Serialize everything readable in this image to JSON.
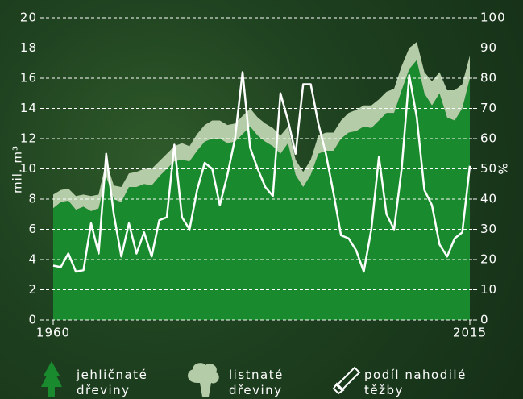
{
  "chart_data": {
    "type": "area",
    "y_label": "mil. m³",
    "y2_label": "%",
    "x": [
      1960,
      1961,
      1962,
      1963,
      1964,
      1965,
      1966,
      1967,
      1968,
      1969,
      1970,
      1971,
      1972,
      1973,
      1974,
      1975,
      1976,
      1977,
      1978,
      1979,
      1980,
      1981,
      1982,
      1983,
      1984,
      1985,
      1986,
      1987,
      1988,
      1989,
      1990,
      1991,
      1992,
      1993,
      1994,
      1995,
      1996,
      1997,
      1998,
      1999,
      2000,
      2001,
      2002,
      2003,
      2004,
      2005,
      2006,
      2007,
      2008,
      2009,
      2010,
      2011,
      2012,
      2013,
      2014,
      2015
    ],
    "xlim": [
      1960,
      2015
    ],
    "xticks": [
      1960,
      2015
    ],
    "ylim": [
      0,
      20
    ],
    "yticks": [
      0,
      2,
      4,
      6,
      8,
      10,
      12,
      14,
      16,
      18,
      20
    ],
    "y2lim": [
      0,
      100
    ],
    "y2ticks": [
      0,
      10,
      20,
      30,
      40,
      50,
      60,
      70,
      80,
      90,
      100
    ],
    "grid": true,
    "series": [
      {
        "name": "jehličnaté dřeviny",
        "color": "#1a8a2e",
        "stack": true,
        "values": [
          7.4,
          7.8,
          7.9,
          7.3,
          7.5,
          7.2,
          7.4,
          9.5,
          8.0,
          7.8,
          8.8,
          8.8,
          9.0,
          8.9,
          9.5,
          10.0,
          10.5,
          10.6,
          10.5,
          11.2,
          11.8,
          12.0,
          12.0,
          11.7,
          11.8,
          12.3,
          12.8,
          12.2,
          11.8,
          11.5,
          11.0,
          11.7,
          9.6,
          8.8,
          9.6,
          11.0,
          11.2,
          11.2,
          12.0,
          12.4,
          12.5,
          12.8,
          12.7,
          13.2,
          13.7,
          13.7,
          15.2,
          16.6,
          17.2,
          15.0,
          14.2,
          15.0,
          13.4,
          13.2,
          14.0,
          16.0
        ]
      },
      {
        "name": "listnaté dřeviny",
        "color": "#b5cca8",
        "stack": true,
        "values": [
          0.9,
          0.8,
          0.8,
          0.9,
          0.8,
          1.0,
          0.9,
          1.0,
          0.9,
          1.0,
          0.9,
          1.0,
          1.0,
          1.1,
          1.0,
          1.0,
          1.0,
          1.1,
          1.0,
          1.1,
          1.1,
          1.2,
          1.2,
          1.2,
          1.2,
          1.2,
          1.2,
          1.2,
          1.2,
          1.2,
          1.2,
          1.1,
          1.0,
          1.0,
          1.0,
          1.2,
          1.2,
          1.2,
          1.2,
          1.3,
          1.4,
          1.4,
          1.5,
          1.4,
          1.4,
          1.6,
          1.6,
          1.4,
          1.2,
          1.4,
          1.6,
          1.4,
          1.8,
          2.0,
          1.6,
          1.5
        ]
      },
      {
        "name": "podíl nahodilé těžby",
        "color": "#ffffff",
        "axis": "y2",
        "values": [
          18,
          17.5,
          22,
          16,
          16.5,
          32,
          22,
          55,
          35,
          21,
          32,
          22,
          29,
          21,
          33,
          34,
          58,
          34,
          30,
          43,
          52,
          50,
          38,
          48,
          60,
          82,
          57,
          50,
          44,
          41,
          75,
          66,
          55,
          78,
          78,
          65,
          55,
          42,
          28,
          27,
          23,
          16,
          30,
          54,
          35,
          30,
          50,
          81,
          67,
          43,
          38,
          25,
          21,
          27,
          29,
          51
        ]
      }
    ]
  }
}
